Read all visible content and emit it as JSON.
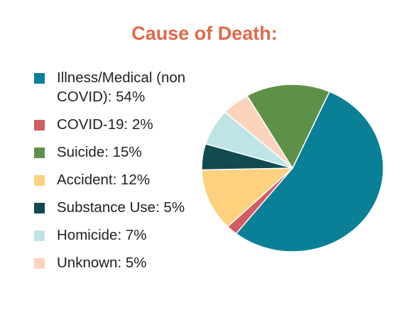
{
  "chart_data": {
    "type": "pie",
    "title": "Cause of Death:",
    "legend_position": "left",
    "slices": [
      {
        "label": "Illness/Medical (non COVID): 54%",
        "value": 54,
        "color": "#0a7f98"
      },
      {
        "label": "COVID-19: 2%",
        "value": 2,
        "color": "#d25c63"
      },
      {
        "label": "Accident: 12%",
        "value": 12,
        "color": "#fcd27f"
      },
      {
        "label": "Substance Use: 5%",
        "value": 5,
        "color": "#114a51"
      },
      {
        "label": "Homicide: 7%",
        "value": 7,
        "color": "#bfe4e6"
      },
      {
        "label": "Unknown: 5%",
        "value": 5,
        "color": "#fcd4bd"
      },
      {
        "label": "Suicide: 15%",
        "value": 15,
        "color": "#5e9148"
      }
    ],
    "legend_order": [
      0,
      1,
      6,
      2,
      3,
      4,
      5
    ]
  },
  "colors": {
    "title": "#e0694a"
  }
}
